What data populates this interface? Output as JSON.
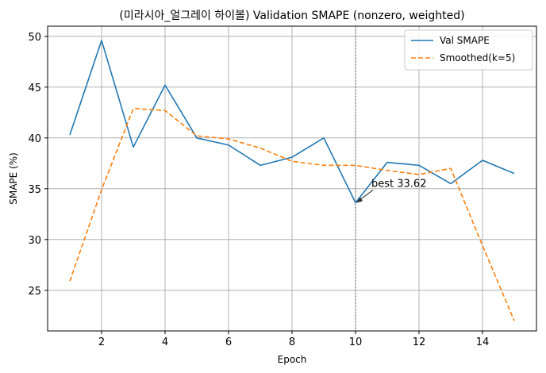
{
  "chart_data": {
    "type": "line",
    "title": "(미라시아_얼그레이 하이볼) Validation SMAPE (nonzero, weighted)",
    "xlabel": "Epoch",
    "ylabel": "SMAPE (%)",
    "x": [
      1,
      2,
      3,
      4,
      5,
      6,
      7,
      8,
      9,
      10,
      11,
      12,
      13,
      14,
      15
    ],
    "xlim": [
      0.3,
      15.7
    ],
    "ylim": [
      21.0,
      51.0
    ],
    "xticks": [
      2,
      4,
      6,
      8,
      10,
      12,
      14
    ],
    "yticks": [
      25,
      30,
      35,
      40,
      45,
      50
    ],
    "grid": true,
    "legend_position": "top-right",
    "series": [
      {
        "name": "Val SMAPE",
        "color": "#1f77b4",
        "style": "solid",
        "values": [
          40.3,
          49.6,
          39.1,
          45.2,
          40.0,
          39.3,
          37.3,
          38.1,
          40.0,
          33.62,
          37.6,
          37.3,
          35.5,
          37.8,
          36.5
        ]
      },
      {
        "name": "Smoothed(k=5)",
        "color": "#ff7f0e",
        "style": "dashed",
        "values": [
          25.9,
          34.9,
          42.9,
          42.7,
          40.2,
          39.9,
          39.0,
          37.7,
          37.3,
          37.3,
          36.8,
          36.4,
          37.0,
          29.4,
          22.0
        ]
      }
    ],
    "best_marker": {
      "epoch": 10,
      "value": 33.62,
      "label": "best 33.62",
      "line_color": "#808080"
    }
  }
}
